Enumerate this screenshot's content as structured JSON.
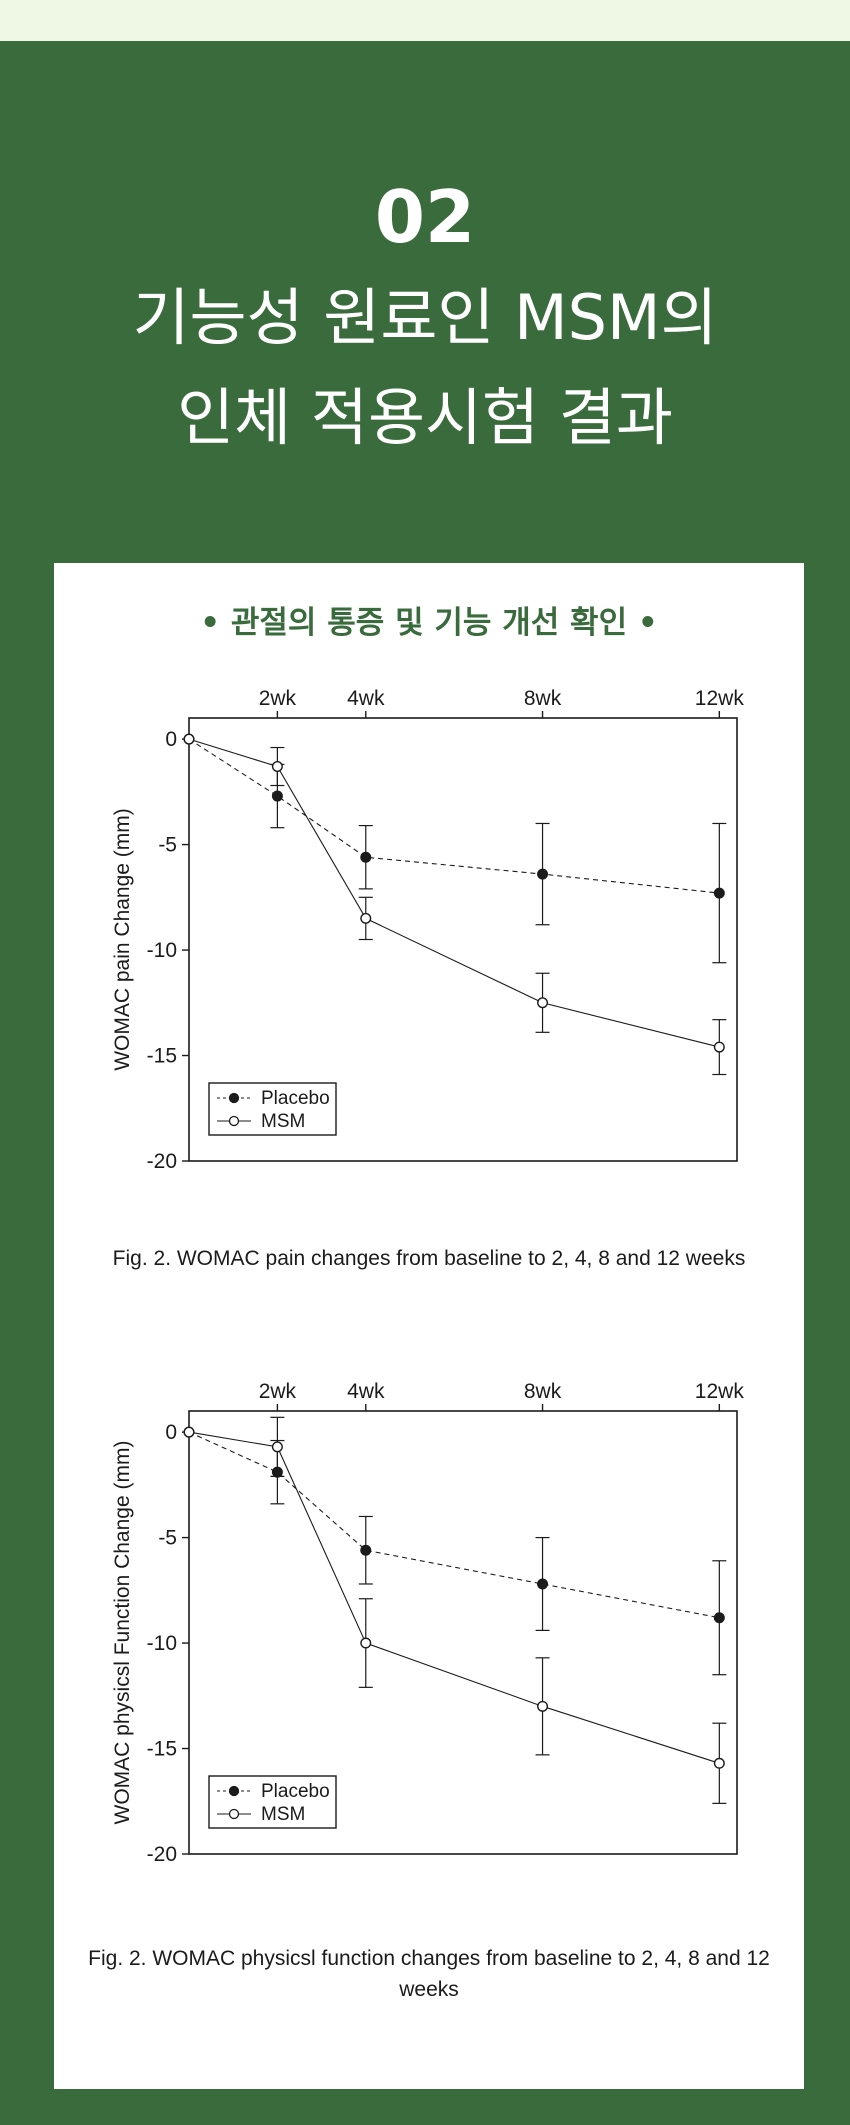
{
  "hero": {
    "number": "02",
    "title_line1": "기능성 원료인 MSM의",
    "title_line2": "인체 적용시험 결과"
  },
  "card": {
    "subtitle": "• 관절의 통증 및 기능 개선 확인 •"
  },
  "colors": {
    "background": "#3a6b3c",
    "top_strip": "#eef8e4",
    "card": "#ffffff",
    "accent_text": "#3a6b3c",
    "ink": "#1b1b1b"
  },
  "chart_data": [
    {
      "type": "line",
      "categories": [
        "2wk",
        "4wk",
        "8wk",
        "12wk"
      ],
      "x": [
        0,
        2,
        4,
        8,
        12
      ],
      "xlim": [
        0,
        12.4
      ],
      "ylabel": "WOMAC pain Change (mm)",
      "ylim": [
        -20,
        1
      ],
      "yticks": [
        0,
        -5,
        -10,
        -15,
        -20
      ],
      "ytick_labels": [
        "0",
        "-5",
        "-10",
        "-15",
        "-20"
      ],
      "legend": {
        "placement": "bottom-left",
        "entries": [
          "Placebo",
          "MSM"
        ]
      },
      "grid": false,
      "series": [
        {
          "name": "Placebo",
          "marker": "filled",
          "line": "dashed",
          "values": [
            0,
            -2.7,
            -5.6,
            -6.4,
            -7.3
          ],
          "errors": [
            0,
            1.5,
            1.5,
            2.4,
            3.3
          ]
        },
        {
          "name": "MSM",
          "marker": "open",
          "line": "solid",
          "values": [
            0,
            -1.3,
            -8.5,
            -12.5,
            -14.6
          ],
          "errors": [
            0,
            0.9,
            1.0,
            1.4,
            1.3
          ]
        }
      ],
      "caption": "Fig. 2. WOMAC pain changes from baseline to 2, 4, 8 and 12 weeks"
    },
    {
      "type": "line",
      "categories": [
        "2wk",
        "4wk",
        "8wk",
        "12wk"
      ],
      "x": [
        0,
        2,
        4,
        8,
        12
      ],
      "xlim": [
        0,
        12.4
      ],
      "ylabel": "WOMAC physicsl Function  Change (mm)",
      "ylim": [
        -20,
        1
      ],
      "yticks": [
        0,
        -5,
        -10,
        -15,
        -20
      ],
      "ytick_labels": [
        "0",
        "-5",
        "-10",
        "-15",
        "-20"
      ],
      "legend": {
        "placement": "bottom-left",
        "entries": [
          "Placebo",
          "MSM"
        ]
      },
      "grid": false,
      "series": [
        {
          "name": "Placebo",
          "marker": "filled",
          "line": "dashed",
          "values": [
            0,
            -1.9,
            -5.6,
            -7.2,
            -8.8
          ],
          "errors": [
            0,
            1.5,
            1.6,
            2.2,
            2.7
          ]
        },
        {
          "name": "MSM",
          "marker": "open",
          "line": "solid",
          "values": [
            0,
            -0.7,
            -10.0,
            -13.0,
            -15.7
          ],
          "errors": [
            0,
            1.4,
            2.1,
            2.3,
            1.9
          ]
        }
      ],
      "caption": "Fig. 2. WOMAC physicsl function changes from baseline to 2, 4, 8 and 12 weeks"
    }
  ]
}
